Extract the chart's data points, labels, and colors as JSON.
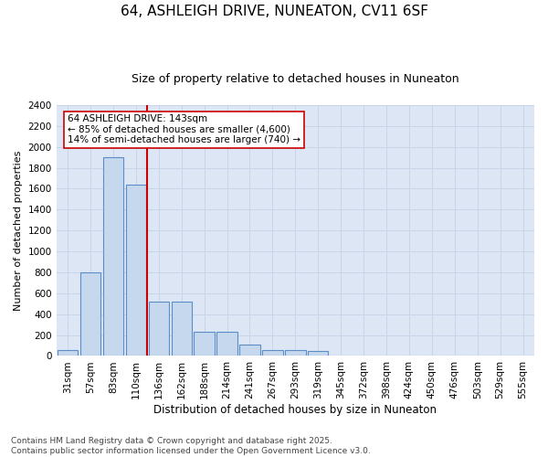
{
  "title1": "64, ASHLEIGH DRIVE, NUNEATON, CV11 6SF",
  "title2": "Size of property relative to detached houses in Nuneaton",
  "xlabel": "Distribution of detached houses by size in Nuneaton",
  "ylabel": "Number of detached properties",
  "footer1": "Contains HM Land Registry data © Crown copyright and database right 2025.",
  "footer2": "Contains public sector information licensed under the Open Government Licence v3.0.",
  "categories": [
    "31sqm",
    "57sqm",
    "83sqm",
    "110sqm",
    "136sqm",
    "162sqm",
    "188sqm",
    "214sqm",
    "241sqm",
    "267sqm",
    "293sqm",
    "319sqm",
    "345sqm",
    "372sqm",
    "398sqm",
    "424sqm",
    "450sqm",
    "476sqm",
    "503sqm",
    "529sqm",
    "555sqm"
  ],
  "values": [
    60,
    800,
    1900,
    1640,
    520,
    520,
    230,
    230,
    110,
    60,
    60,
    50,
    0,
    0,
    0,
    0,
    0,
    0,
    0,
    0,
    0
  ],
  "bar_color": "#c5d8ed",
  "bar_edge_color": "#5b8ec7",
  "vline_x": 3.5,
  "vline_color": "#cc0000",
  "annotation_text": "64 ASHLEIGH DRIVE: 143sqm\n← 85% of detached houses are smaller (4,600)\n14% of semi-detached houses are larger (740) →",
  "annotation_box_color": "#ffffff",
  "annotation_box_edge": "#cc0000",
  "ylim": [
    0,
    2400
  ],
  "yticks": [
    0,
    200,
    400,
    600,
    800,
    1000,
    1200,
    1400,
    1600,
    1800,
    2000,
    2200,
    2400
  ],
  "grid_color": "#c8d4e8",
  "bg_color": "#dce6f5",
  "title1_fontsize": 11,
  "title2_fontsize": 9,
  "xlabel_fontsize": 8.5,
  "ylabel_fontsize": 8,
  "tick_fontsize": 7.5,
  "footer_fontsize": 6.5,
  "annot_fontsize": 7.5
}
